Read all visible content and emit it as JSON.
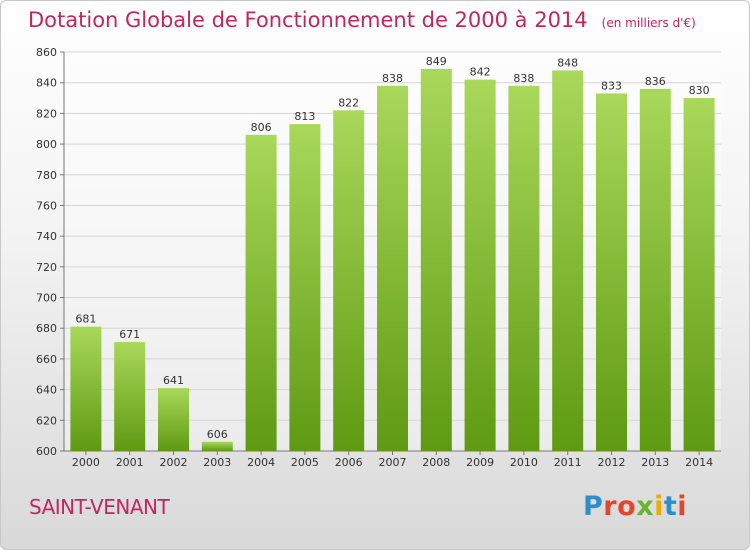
{
  "header": {
    "title": "Dotation Globale de Fonctionnement de 2000 à 2014",
    "unit": "(en milliers d'€)"
  },
  "commune": "SAINT-VENANT",
  "logo": {
    "text": "Proxiti",
    "colors": [
      "#2e8ec9",
      "#e7452a",
      "#e7452a",
      "#6ab42d",
      "#f2a900",
      "#2e8ec9",
      "#e7452a"
    ]
  },
  "colors": {
    "bar_light": "#a9d85a",
    "bar_dark": "#5e9a12",
    "title": "#c0275f"
  },
  "chart_data": {
    "type": "bar",
    "title": "Dotation Globale de Fonctionnement de 2000 à 2014",
    "subtitle": "(en milliers d'€)",
    "categories": [
      "2000",
      "2001",
      "2002",
      "2003",
      "2004",
      "2005",
      "2006",
      "2007",
      "2008",
      "2009",
      "2010",
      "2011",
      "2012",
      "2013",
      "2014"
    ],
    "values": [
      681,
      671,
      641,
      606,
      806,
      813,
      822,
      838,
      849,
      842,
      838,
      848,
      833,
      836,
      830
    ],
    "ylim": [
      600,
      860
    ],
    "yticks": [
      600,
      620,
      640,
      660,
      680,
      700,
      720,
      740,
      760,
      780,
      800,
      820,
      840,
      860
    ],
    "grid": true,
    "data_labels": true
  }
}
